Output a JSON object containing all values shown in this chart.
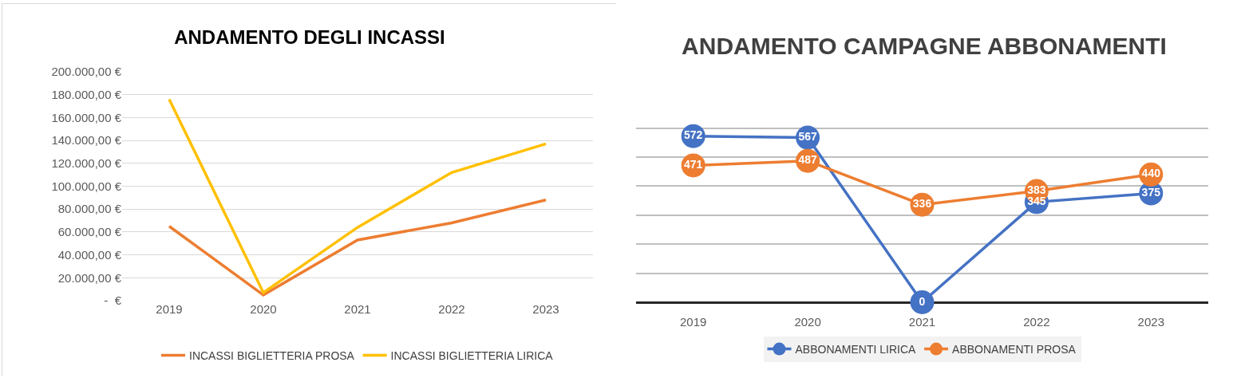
{
  "chart_data": [
    {
      "type": "line",
      "title": "ANDAMENTO DEGLI INCASSI",
      "categories": [
        "2019",
        "2020",
        "2021",
        "2022",
        "2023"
      ],
      "series": [
        {
          "name": "INCASSI BIGLIETTERIA PROSA",
          "color": "#ed7d31",
          "values": [
            65000,
            5000,
            53000,
            68000,
            88000
          ]
        },
        {
          "name": "INCASSI BIGLIETTERIA LIRICA",
          "color": "#ffc000",
          "values": [
            176000,
            7000,
            64000,
            112000,
            137000
          ]
        }
      ],
      "ylim": [
        0,
        200000
      ],
      "yticks": [
        {
          "value": 0,
          "label": "-  €"
        },
        {
          "value": 20000,
          "label": "20.000,00 €"
        },
        {
          "value": 40000,
          "label": "40.000,00 €"
        },
        {
          "value": 60000,
          "label": "60.000,00 €"
        },
        {
          "value": 80000,
          "label": "80.000,00 €"
        },
        {
          "value": 100000,
          "label": "100.000,00 €"
        },
        {
          "value": 120000,
          "label": "120.000,00 €"
        },
        {
          "value": 140000,
          "label": "140.000,00 €"
        },
        {
          "value": 160000,
          "label": "160.000,00 €"
        },
        {
          "value": 180000,
          "label": "180.000,00 €"
        },
        {
          "value": 200000,
          "label": "200.000,00 €"
        }
      ],
      "grid": "y",
      "legend": "bottom",
      "marker": "none",
      "line_style": "solid"
    },
    {
      "type": "line",
      "title": "ANDAMENTO CAMPAGNE ABBONAMENTI",
      "categories": [
        "2019",
        "2020",
        "2021",
        "2022",
        "2023"
      ],
      "series": [
        {
          "name": "ABBONAMENTI LIRICA",
          "color": "#4472c4",
          "values": [
            572,
            567,
            0,
            345,
            375
          ]
        },
        {
          "name": "ABBONAMENTI PROSA",
          "color": "#ed7d31",
          "values": [
            471,
            487,
            336,
            383,
            440
          ]
        }
      ],
      "tick_labels": "x",
      "grid": "y",
      "legend": "bottom",
      "marker": "circle",
      "line_style": "solid",
      "data_labels": true
    }
  ]
}
